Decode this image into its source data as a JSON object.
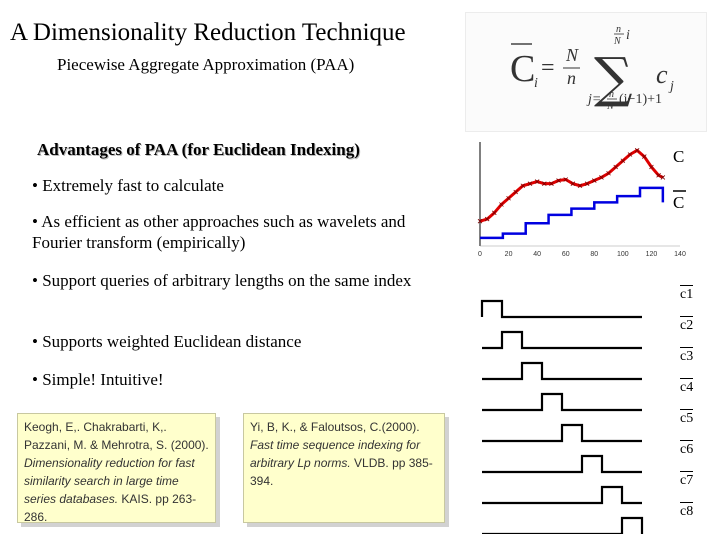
{
  "title": "A Dimensionality Reduction Technique",
  "subtitle": "Piecewise Aggregate Approximation (PAA)",
  "formula": {
    "lhs": "C",
    "lhs_sub": "i",
    "equals": "=",
    "frac_num": "N",
    "frac_den": "n",
    "sigma": "∑",
    "upper_num": "n",
    "upper_den": "N",
    "upper_i": "i",
    "summand": "c",
    "summand_sub": "j",
    "lower": "j=",
    "lower_num": "n",
    "lower_den": "N",
    "lower_tail": "(i−1)+1"
  },
  "advantages_heading": "Advantages of PAA (for Euclidean Indexing)",
  "bullets": [
    "• Extremely fast to calculate",
    "• As efficient as other approaches such as wavelets and Fourier transform (empirically)",
    "• Support queries of arbitrary lengths on the same index",
    "• Supports weighted Euclidean distance",
    "• Simple! Intuitive!"
  ],
  "references": [
    {
      "authors": "Keogh, E,. Chakrabarti, K,. Pazzani, M. & Mehrotra, S. (2000).",
      "title": "Dimensionality reduction for fast similarity search in large time series databases.",
      "venue": "KAIS. pp 263-286."
    },
    {
      "authors": "Yi, B, K., & Faloutsos, C.(2000).",
      "title": "Fast time sequence indexing for arbitrary Lp norms.",
      "venue": "VLDB. pp 385-394."
    }
  ],
  "chart_data": {
    "type": "line",
    "title": "",
    "xlabel": "",
    "ylabel": "",
    "xlim": [
      0,
      140
    ],
    "ylim": [
      -2.2,
      2.6
    ],
    "xticks": [
      "0",
      "20",
      "40",
      "60",
      "80",
      "100",
      "120",
      "140"
    ],
    "series": [
      {
        "name": "C",
        "label": "C",
        "color": "#e00000",
        "x": [
          0,
          5,
          10,
          15,
          20,
          25,
          30,
          35,
          40,
          45,
          50,
          55,
          60,
          65,
          70,
          75,
          80,
          85,
          90,
          95,
          100,
          105,
          110,
          115,
          120,
          125,
          128
        ],
        "y": [
          -1.2,
          -1.1,
          -0.8,
          -0.4,
          -0.1,
          0.2,
          0.5,
          0.6,
          0.7,
          0.6,
          0.6,
          0.75,
          0.8,
          0.6,
          0.5,
          0.6,
          0.75,
          0.9,
          1.1,
          1.4,
          1.7,
          2.0,
          2.2,
          1.9,
          1.4,
          1.0,
          0.9
        ]
      },
      {
        "name": "C-bar",
        "label": "C",
        "color": "#0000e0",
        "x": [
          0,
          16,
          16,
          32,
          32,
          48,
          48,
          64,
          64,
          80,
          80,
          96,
          96,
          112,
          112,
          128,
          128
        ],
        "y": [
          -2.0,
          -2.0,
          -1.8,
          -1.8,
          -1.3,
          -1.3,
          -0.9,
          -0.9,
          -0.6,
          -0.6,
          -0.3,
          -0.3,
          0.0,
          0.0,
          0.4,
          0.4,
          -0.3
        ]
      }
    ],
    "basis": {
      "labels": [
        "c1",
        "c2",
        "c3",
        "c4",
        "c5",
        "c6",
        "c7",
        "c8"
      ],
      "segments": 8,
      "pulse_height": 1
    }
  }
}
